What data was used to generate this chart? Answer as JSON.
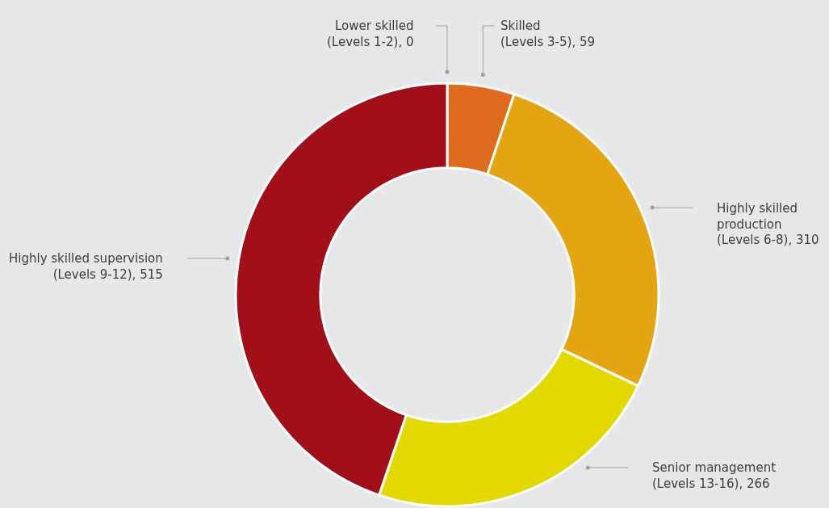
{
  "chart_data": {
    "type": "donut",
    "categories": [
      "Lower skilled\n(Levels 1-2), 0",
      "Skilled\n(Levels 3-5), 59",
      "Highly skilled\nproduction\n(Levels 6-8), 310",
      "Senior management\n(Levels 13-16), 266",
      "Highly skilled supervision\n(Levels 9-12), 515"
    ],
    "values": [
      0,
      59,
      310,
      266,
      515
    ],
    "colors": [
      "#a30f1a",
      "#de6b1e",
      "#e3a612",
      "#e3d900",
      "#a10f19"
    ],
    "legend": false
  }
}
